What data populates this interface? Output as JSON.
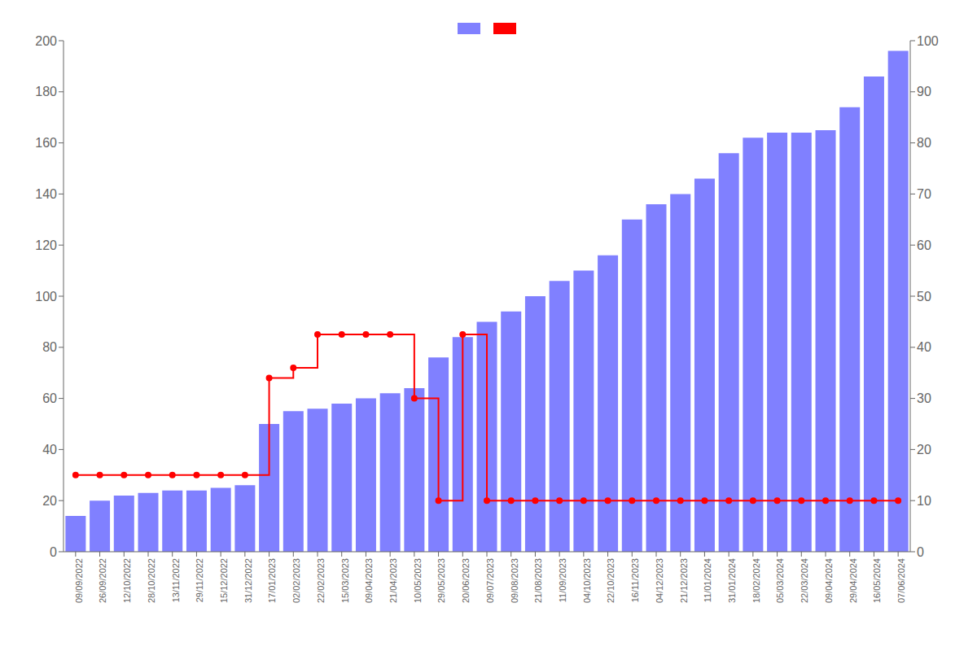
{
  "chart_data": {
    "type": "bar",
    "categories": [
      "09/09/2022",
      "26/09/2022",
      "12/10/2022",
      "28/10/2022",
      "13/11/2022",
      "29/11/2022",
      "15/12/2022",
      "31/12/2022",
      "17/01/2023",
      "02/02/2023",
      "22/02/2023",
      "15/03/2023",
      "09/04/2023",
      "21/04/2023",
      "10/05/2023",
      "29/05/2023",
      "20/06/2023",
      "09/07/2023",
      "09/08/2023",
      "21/08/2023",
      "11/09/2023",
      "04/10/2023",
      "22/10/2023",
      "16/11/2023",
      "04/12/2023",
      "21/12/2023",
      "11/01/2024",
      "31/01/2024",
      "18/02/2024",
      "05/03/2024",
      "22/03/2024",
      "09/04/2024",
      "29/04/2024",
      "16/05/2024",
      "07/06/2024"
    ],
    "series": [
      {
        "type": "bar",
        "color": "#8080ff",
        "values": [
          14,
          20,
          22,
          23,
          24,
          24,
          25,
          26,
          50,
          55,
          56,
          58,
          60,
          62,
          64,
          76,
          84,
          90,
          94,
          100,
          106,
          110,
          116,
          130,
          136,
          140,
          146,
          156,
          162,
          164,
          164,
          165,
          174,
          186,
          196
        ]
      },
      {
        "type": "line",
        "color": "#ff0000",
        "marker": "circle",
        "line_style": "step",
        "values": [
          30,
          30,
          30,
          30,
          30,
          30,
          30,
          30,
          68,
          72,
          85,
          85,
          85,
          85,
          60,
          20,
          85,
          20,
          20,
          20,
          20,
          20,
          20,
          20,
          20,
          20,
          20,
          20,
          20,
          20,
          20,
          20,
          20,
          20,
          20
        ]
      }
    ],
    "ylim": [
      0,
      200
    ],
    "yticks": [
      0,
      20,
      40,
      60,
      80,
      100,
      120,
      140,
      160,
      180,
      200
    ],
    "y2lim": [
      0,
      100
    ],
    "y2ticks": [
      0,
      10,
      20,
      30,
      40,
      50,
      60,
      70,
      80,
      90,
      100
    ],
    "grid": false,
    "legend": "top"
  }
}
